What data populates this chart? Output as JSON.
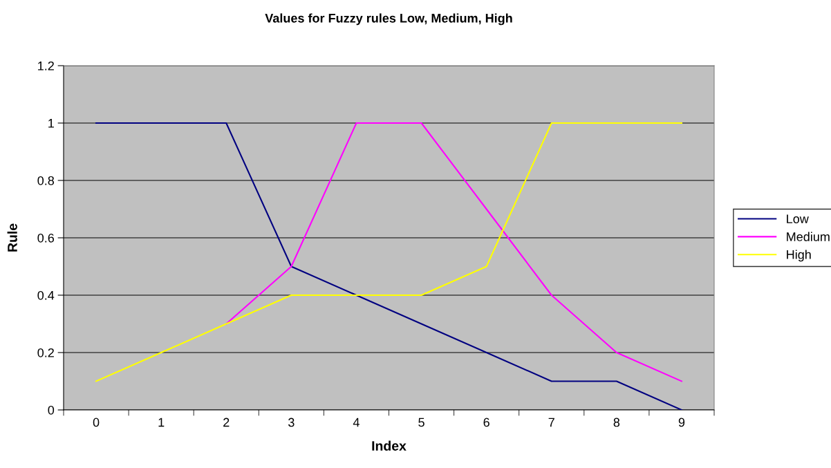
{
  "chart_data": {
    "type": "line",
    "title": "Values for Fuzzy rules Low, Medium, High",
    "xlabel": "Index",
    "ylabel": "Rule",
    "categories": [
      "0",
      "1",
      "2",
      "3",
      "4",
      "5",
      "6",
      "7",
      "8",
      "9"
    ],
    "series": [
      {
        "name": "Low",
        "color": "#000080",
        "values": [
          1,
          1,
          1,
          0.5,
          0.4,
          0.3,
          0.2,
          0.1,
          0.1,
          0
        ]
      },
      {
        "name": "Medium",
        "color": "#ff00ff",
        "values": [
          null,
          null,
          0.3,
          0.5,
          1,
          1,
          0.7,
          0.4,
          0.2,
          0.1
        ]
      },
      {
        "name": "High",
        "color": "#ffff00",
        "values": [
          0.1,
          0.2,
          0.3,
          0.4,
          0.4,
          0.4,
          0.5,
          1,
          1,
          1
        ]
      }
    ],
    "ylim": [
      0,
      1.2
    ],
    "yticks": [
      0,
      0.2,
      0.4,
      0.6,
      0.8,
      1,
      1.2
    ],
    "grid": "y",
    "legend": "right",
    "marker": "none",
    "line_style": "solid"
  }
}
